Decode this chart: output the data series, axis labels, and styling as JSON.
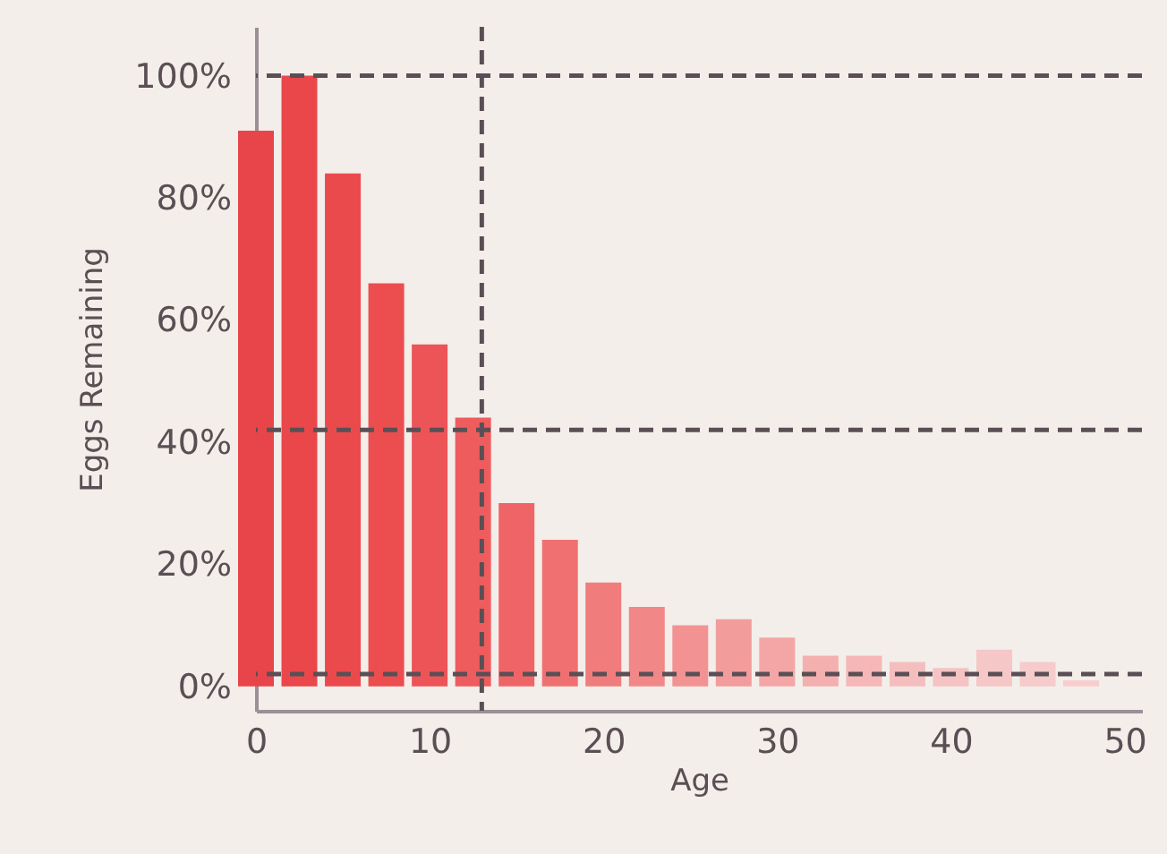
{
  "chart_data": {
    "type": "bar",
    "xlabel": "Age",
    "ylabel": "Eggs Remaining",
    "x": [
      0,
      2.5,
      5,
      7.5,
      10,
      12.5,
      15,
      17.5,
      20,
      22.5,
      25,
      27.5,
      30,
      32.5,
      35,
      37.5,
      40,
      42.5,
      45,
      47.5
    ],
    "values": [
      91,
      100,
      84,
      66,
      56,
      44,
      30,
      24,
      17,
      13,
      10,
      11,
      8,
      5,
      5,
      4,
      3,
      6,
      4,
      1
    ],
    "colors": [
      "#e8454a",
      "#ea474b",
      "#eb4a4d",
      "#ec4e50",
      "#ed5457",
      "#ee5c5e",
      "#ef6567",
      "#f07071",
      "#f17c7c",
      "#f28787",
      "#f39292",
      "#f39c9c",
      "#f4a6a6",
      "#f4afaf",
      "#f5b7b7",
      "#f5bebe",
      "#f5c3c3",
      "#f5c7c7",
      "#f5cbcb",
      "#f6cece"
    ],
    "xlim": [
      0,
      51
    ],
    "xticks": [
      0,
      10,
      20,
      30,
      40,
      50
    ],
    "ylim": [
      -4,
      108
    ],
    "yticks": [
      {
        "value": 0,
        "label": "0%"
      },
      {
        "value": 20,
        "label": "20%"
      },
      {
        "value": 40,
        "label": "40%"
      },
      {
        "value": 60,
        "label": "60%"
      },
      {
        "value": 80,
        "label": "80%"
      },
      {
        "value": 100,
        "label": "100%"
      }
    ],
    "ref_lines": [
      {
        "axis": "y",
        "value": 100,
        "color": "#5a4f54",
        "line_style": "dashed"
      },
      {
        "axis": "y",
        "value": 42,
        "color": "#5a4f54",
        "line_style": "dashed"
      },
      {
        "axis": "y",
        "value": 2,
        "color": "#5a4f54",
        "line_style": "dashed"
      },
      {
        "axis": "x",
        "value": 13,
        "color": "#5a4f54",
        "line_style": "dashed"
      }
    ],
    "grid": false
  }
}
